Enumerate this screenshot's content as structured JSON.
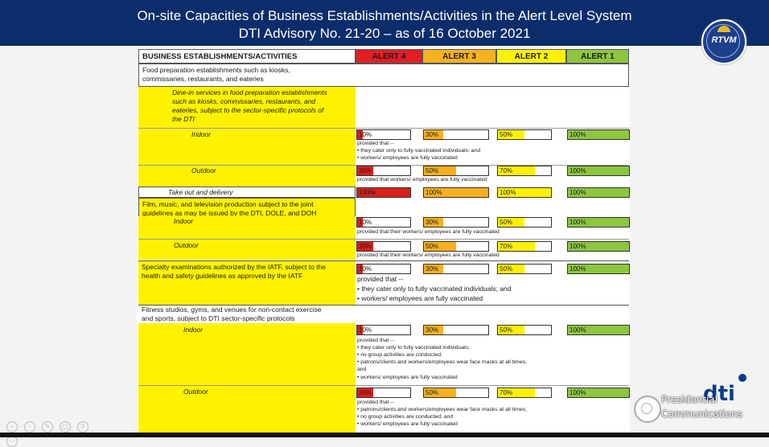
{
  "title_line1": "On-site Capacities of Business Establishments/Activities in the Alert Level System",
  "title_line2": "DTI Advisory No. 21-20 – as of 16 October 2021",
  "logo_rtvm": "RTVM",
  "header": {
    "col0": "BUSINESS ESTABLISHMENTS/ACTIVITIES",
    "alert4": "ALERT 4",
    "alert3": "ALERT 3",
    "alert2": "ALERT 2",
    "alert1": "ALERT 1"
  },
  "colors": {
    "alert4": "#d9211b",
    "alert3": "#f7b11f",
    "alert2": "#fff200",
    "alert1": "#8dc63f",
    "banner": "#0c2d6b"
  },
  "food": {
    "title_a": "Food preparation establishments such as kiosks,",
    "title_b": "commissaries, restaurants, and eateries",
    "dine_a": "Dine-in services in food preparation establishments",
    "dine_b": "such as kiosks, commissaries, restaurants, and",
    "dine_c": "eateries, subject to the sector-specific protocols of",
    "dine_d": "the DTI",
    "indoor": "Indoor",
    "indoor_vals": [
      "10%",
      "30%",
      "50%",
      "100%"
    ],
    "indoor_fill": [
      0.1,
      0.3,
      0.5,
      1.0
    ],
    "indoor_note1": "provided that --",
    "indoor_note2": "• they cater only to fully vaccinated individuals; and",
    "indoor_note3": "• workers/ employees are fully vaccinated",
    "outdoor": "Outdoor",
    "outdoor_vals": [
      "30%",
      "50%",
      "70%",
      "100%"
    ],
    "outdoor_fill": [
      0.3,
      0.5,
      0.7,
      1.0
    ],
    "outdoor_note": "provided that workers/ employees are fully vaccinated",
    "takeout": "Take out and delivery",
    "takeout_vals": [
      "100%",
      "100%",
      "100%",
      "100%"
    ],
    "takeout_fill": [
      1.0,
      1.0,
      1.0,
      1.0
    ]
  },
  "film": {
    "title_a": "Film, music, and television production subject to the joint",
    "title_b": "guidelines as may be issued by the DTI, DOLE, and DOH",
    "indoor": "Indoor",
    "indoor_vals": [
      "10%",
      "30%",
      "50%",
      "100%"
    ],
    "indoor_fill": [
      0.1,
      0.3,
      0.5,
      1.0
    ],
    "indoor_note": "provided that their workers/ employees are fully vaccinated",
    "outdoor": "Outdoor",
    "outdoor_vals": [
      "30%",
      "50%",
      "70%",
      "100%"
    ],
    "outdoor_fill": [
      0.3,
      0.5,
      0.7,
      1.0
    ],
    "outdoor_note": "provided that their workers/ employees are fully vaccinated"
  },
  "specialty": {
    "title_a": "Specialty examinations authorized by the IATF, subject to the",
    "title_b": "health and safety guidelines as approved by the IATF",
    "vals": [
      "10%",
      "30%",
      "50%",
      "100%"
    ],
    "fill": [
      0.1,
      0.3,
      0.5,
      1.0
    ],
    "note1": "provided that --",
    "note2": "• they cater only to fully vaccinated individuals; and",
    "note3": "• workers/ employees are fully vaccinated"
  },
  "fitness": {
    "title_a": "Fitness studios, gyms, and venues for non-contact exercise",
    "title_b": "and sports, subject to DTI sector-specific protocols",
    "indoor": "Indoor",
    "indoor_vals": [
      "10%",
      "30%",
      "50%",
      "100%"
    ],
    "indoor_fill": [
      0.1,
      0.3,
      0.5,
      1.0
    ],
    "indoor_note1": "provided that --",
    "indoor_note2": "• they cater only to fully vaccinated individuals;",
    "indoor_note3": "• no group activities are conducted;",
    "indoor_note4": "• patrons/clients and workers/employees wear face masks at all times;",
    "indoor_note5": "and",
    "indoor_note6": "• workers/ employees are fully vaccinated",
    "outdoor": "Outdoor",
    "outdoor_vals": [
      "30%",
      "50%",
      "70%",
      "100%"
    ],
    "outdoor_fill": [
      0.3,
      0.5,
      0.7,
      1.0
    ],
    "outdoor_note1": "provided that --",
    "outdoor_note2": "• patrons/clients and workers/employees wear face masks at all times;",
    "outdoor_note3": "• no group activities are conducted; and",
    "outdoor_note4": "• workers/ employees are fully vaccinated"
  },
  "footer": {
    "pc_line1": "Presidential",
    "pc_line2": "Communications",
    "dti_logo": "dti"
  }
}
